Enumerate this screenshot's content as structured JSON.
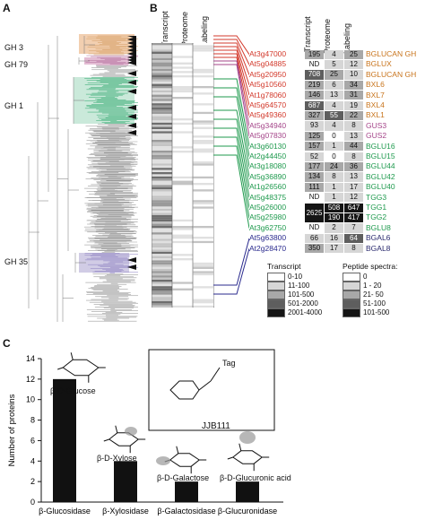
{
  "panel_labels": {
    "a": "A",
    "b": "B",
    "c": "C"
  },
  "clades": {
    "gh3": {
      "label": "GH 3",
      "color": "#e8a870"
    },
    "gh79": {
      "label": "GH 79",
      "color": "#c77aa8"
    },
    "gh1": {
      "label": "GH 1",
      "color": "#2aa66a"
    },
    "gh35": {
      "label": "GH 35",
      "color": "#9a8ec6"
    }
  },
  "heatmap_headers": [
    "Transcript",
    "Proteome",
    "Labeling"
  ],
  "table_headers": [
    "Transcript",
    "Proteome",
    "Labeling"
  ],
  "genes": [
    {
      "id": "At3g47000",
      "t": "195",
      "p": "4",
      "l": "25",
      "name": "BGLUCAN GH",
      "color": "#c8741c",
      "line": "#d33a2c"
    },
    {
      "id": "At5g04885",
      "t": "ND",
      "p": "5",
      "l": "12",
      "name": "BGLUX",
      "color": "#c8741c",
      "line": "#d33a2c"
    },
    {
      "id": "At5g20950",
      "t": "708",
      "p": "25",
      "l": "10",
      "name": "BGLUCAN GH",
      "color": "#c8741c",
      "line": "#d33a2c"
    },
    {
      "id": "At5g10560",
      "t": "219",
      "p": "6",
      "l": "34",
      "name": "BXL6",
      "color": "#c8741c",
      "line": "#d33a2c"
    },
    {
      "id": "At1g78060",
      "t": "146",
      "p": "13",
      "l": "31",
      "name": "BXL7",
      "color": "#c8741c",
      "line": "#d33a2c"
    },
    {
      "id": "At5g64570",
      "t": "687",
      "p": "4",
      "l": "19",
      "name": "BXL4",
      "color": "#c8741c",
      "line": "#d33a2c"
    },
    {
      "id": "At5g49360",
      "t": "327",
      "p": "55",
      "l": "22",
      "name": "BXL1",
      "color": "#c8741c",
      "line": "#d33a2c"
    },
    {
      "id": "At5g34940",
      "t": "93",
      "p": "4",
      "l": "8",
      "name": "GUS3",
      "color": "#a5468a",
      "line": "#a5468a"
    },
    {
      "id": "At5g07830",
      "t": "125",
      "p": "0",
      "l": "13",
      "name": "GUS2",
      "color": "#a5468a",
      "line": "#a5468a"
    },
    {
      "id": "At3g60130",
      "t": "157",
      "p": "1",
      "l": "44",
      "name": "BGLU16",
      "color": "#1f9a4e",
      "line": "#1f9a4e"
    },
    {
      "id": "At2g44450",
      "t": "52",
      "p": "0",
      "l": "8",
      "name": "BGLU15",
      "color": "#1f9a4e",
      "line": "#1f9a4e"
    },
    {
      "id": "At3g18080",
      "t": "177",
      "p": "24",
      "l": "36",
      "name": "BGLU44",
      "color": "#1f9a4e",
      "line": "#1f9a4e"
    },
    {
      "id": "At5g36890",
      "t": "134",
      "p": "8",
      "l": "13",
      "name": "BGLU42",
      "color": "#1f9a4e",
      "line": "#1f9a4e"
    },
    {
      "id": "At1g26560",
      "t": "111",
      "p": "1",
      "l": "17",
      "name": "BGLU40",
      "color": "#1f9a4e",
      "line": "#1f9a4e"
    },
    {
      "id": "At5g48375",
      "t": "ND",
      "p": "1",
      "l": "12",
      "name": "TGG3",
      "color": "#1f9a4e",
      "line": "#1f9a4e"
    },
    {
      "id": "At5g26000",
      "t": "2625",
      "p": "508",
      "l": "647",
      "name": "TGG1",
      "color": "#1f9a4e",
      "line": "#1f9a4e"
    },
    {
      "id": "At5g25980",
      "t": "",
      "p": "190",
      "l": "417",
      "name": "TGG2",
      "color": "#1f9a4e",
      "line": "#1f9a4e"
    },
    {
      "id": "At3g62750",
      "t": "ND",
      "p": "2",
      "l": "7",
      "name": "BGLU8",
      "color": "#1f9a4e",
      "line": "#1f9a4e"
    },
    {
      "id": "At5g63800",
      "t": "66",
      "p": "16",
      "l": "64",
      "name": "BGAL6",
      "color": "#2a2a6e",
      "line": "#2a2a8e"
    },
    {
      "id": "At2g28470",
      "t": "350",
      "p": "17",
      "l": "8",
      "name": "BGAL8",
      "color": "#2a2a6e",
      "line": "#2a2a8e"
    }
  ],
  "legend_transcript": {
    "title": "Transcript",
    "items": [
      {
        "label": "0-10",
        "color": "#ffffff"
      },
      {
        "label": "11-100",
        "color": "#d6d6d6"
      },
      {
        "label": "101-500",
        "color": "#a8a8a8"
      },
      {
        "label": "501-2000",
        "color": "#5e5e5e"
      },
      {
        "label": "2001-4000",
        "color": "#151515"
      }
    ]
  },
  "legend_peptide": {
    "title": "Peptide spectra:",
    "items": [
      {
        "label": "0",
        "color": "#ffffff"
      },
      {
        "label": "1 - 20",
        "color": "#d6d6d6"
      },
      {
        "label": "21- 50",
        "color": "#a8a8a8"
      },
      {
        "label": "51-100",
        "color": "#5e5e5e"
      },
      {
        "label": "101-500",
        "color": "#151515"
      }
    ]
  },
  "chart_data": {
    "type": "bar",
    "ylabel": "Number of proteins",
    "ylim": [
      0,
      14
    ],
    "yticks": [
      0,
      2,
      4,
      6,
      8,
      10,
      12,
      14
    ],
    "categories": [
      "β-Glucosidase",
      "β-Xylosidase",
      "β-Galactosidase",
      "β-Glucuronidase"
    ],
    "values": [
      12,
      4,
      2,
      2
    ],
    "substrates": [
      "β-D-Glucose",
      "β-D-Xylose",
      "β-D-Galactose",
      "β-D-Glucuronic acid"
    ],
    "probe_label": "JJB111",
    "probe_tag": "Tag",
    "bar_color": "#111111"
  }
}
